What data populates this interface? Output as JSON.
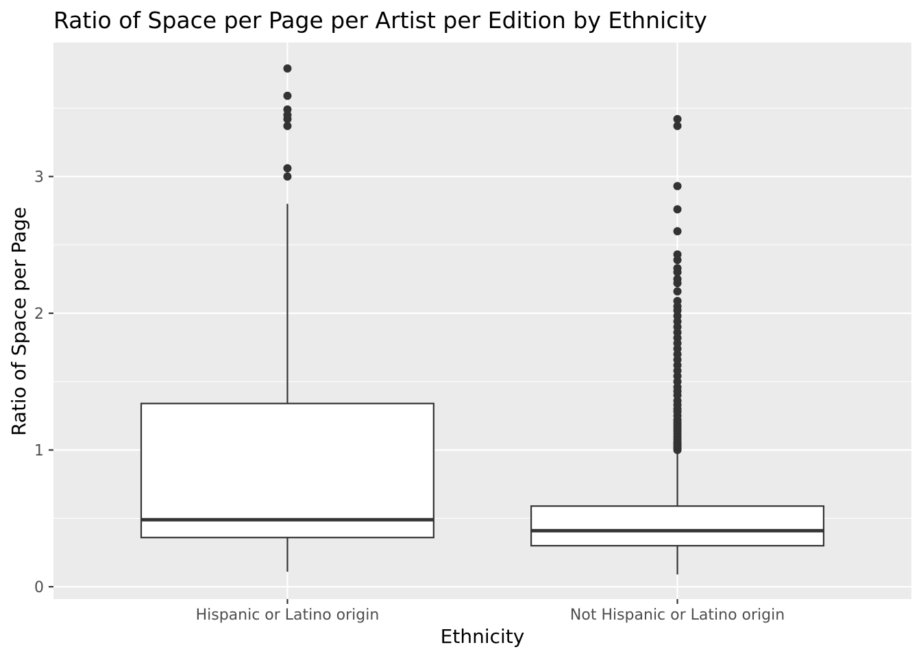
{
  "chart_data": {
    "type": "boxplot",
    "title": "Ratio of Space per Page per Artist per Edition by Ethnicity",
    "xlabel": "Ethnicity",
    "ylabel": "Ratio of Space per Page",
    "categories": [
      "Hispanic or Latino origin",
      "Not Hispanic or Latino origin"
    ],
    "y_ticks": [
      0,
      1,
      2,
      3
    ],
    "y_tick_labels": [
      "0",
      "1",
      "2",
      "3"
    ],
    "ylim": [
      -0.09,
      3.98
    ],
    "grid": true,
    "legend": "none",
    "colors": {
      "panel_background": "#ebebeb",
      "grid": "#ffffff",
      "box_fill": "#ffffff",
      "box_stroke": "#333333",
      "outlier": "#333333",
      "tick_label": "#4d4d4d"
    },
    "boxes": [
      {
        "category": "Hispanic or Latino origin",
        "whisker_low": 0.11,
        "q1": 0.36,
        "median": 0.49,
        "q3": 1.34,
        "whisker_high": 2.8,
        "outliers": [
          3.0,
          3.06,
          3.37,
          3.42,
          3.45,
          3.49,
          3.59,
          3.79
        ]
      },
      {
        "category": "Not Hispanic or Latino origin",
        "whisker_low": 0.09,
        "q1": 0.3,
        "median": 0.41,
        "q3": 0.59,
        "whisker_high": 0.99,
        "outliers": [
          1.0,
          1.01,
          1.02,
          1.03,
          1.04,
          1.05,
          1.06,
          1.08,
          1.1,
          1.12,
          1.14,
          1.16,
          1.18,
          1.2,
          1.22,
          1.25,
          1.28,
          1.3,
          1.33,
          1.36,
          1.4,
          1.43,
          1.46,
          1.5,
          1.54,
          1.58,
          1.62,
          1.66,
          1.7,
          1.74,
          1.78,
          1.82,
          1.86,
          1.9,
          1.94,
          1.98,
          2.02,
          2.05,
          2.09,
          2.16,
          2.22,
          2.25,
          2.3,
          2.33,
          2.39,
          2.43,
          2.6,
          2.76,
          2.93,
          3.37,
          3.42
        ]
      }
    ]
  }
}
